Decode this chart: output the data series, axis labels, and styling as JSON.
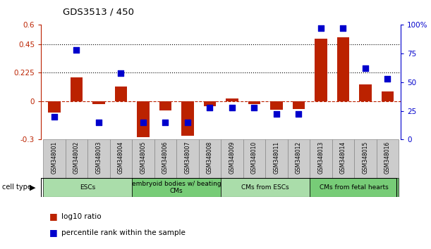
{
  "title": "GDS3513 / 450",
  "samples": [
    "GSM348001",
    "GSM348002",
    "GSM348003",
    "GSM348004",
    "GSM348005",
    "GSM348006",
    "GSM348007",
    "GSM348008",
    "GSM348009",
    "GSM348010",
    "GSM348011",
    "GSM348012",
    "GSM348013",
    "GSM348014",
    "GSM348015",
    "GSM348016"
  ],
  "log10_ratio": [
    -0.09,
    0.185,
    -0.025,
    0.115,
    -0.28,
    -0.07,
    -0.27,
    -0.04,
    0.02,
    -0.02,
    -0.065,
    -0.06,
    0.49,
    0.5,
    0.13,
    0.075
  ],
  "pct_rank": [
    20,
    78,
    15,
    58,
    15,
    15,
    15,
    28,
    28,
    28,
    22,
    22,
    97,
    97,
    62,
    53
  ],
  "ylim_left": [
    -0.3,
    0.6
  ],
  "ylim_right": [
    0,
    100
  ],
  "hlines": [
    0.225,
    0.45
  ],
  "bar_width": 0.55,
  "marker_size": 40,
  "red_color": "#BB2200",
  "blue_color": "#0000CC",
  "dashed_line_color": "#BB2200",
  "left_axis_color": "#BB2200",
  "right_axis_color": "#0000CC",
  "legend_red_label": "log10 ratio",
  "legend_blue_label": "percentile rank within the sample",
  "cell_type_colors": [
    "#AADDAA",
    "#77CC77",
    "#AADDAA",
    "#77CC77"
  ],
  "cell_type_labels": [
    "ESCs",
    "embryoid bodies w/ beating\nCMs",
    "CMs from ESCs",
    "CMs from fetal hearts"
  ],
  "cell_ranges": [
    [
      0,
      3
    ],
    [
      4,
      7
    ],
    [
      8,
      11
    ],
    [
      12,
      15
    ]
  ],
  "gray_color": "#CCCCCC"
}
